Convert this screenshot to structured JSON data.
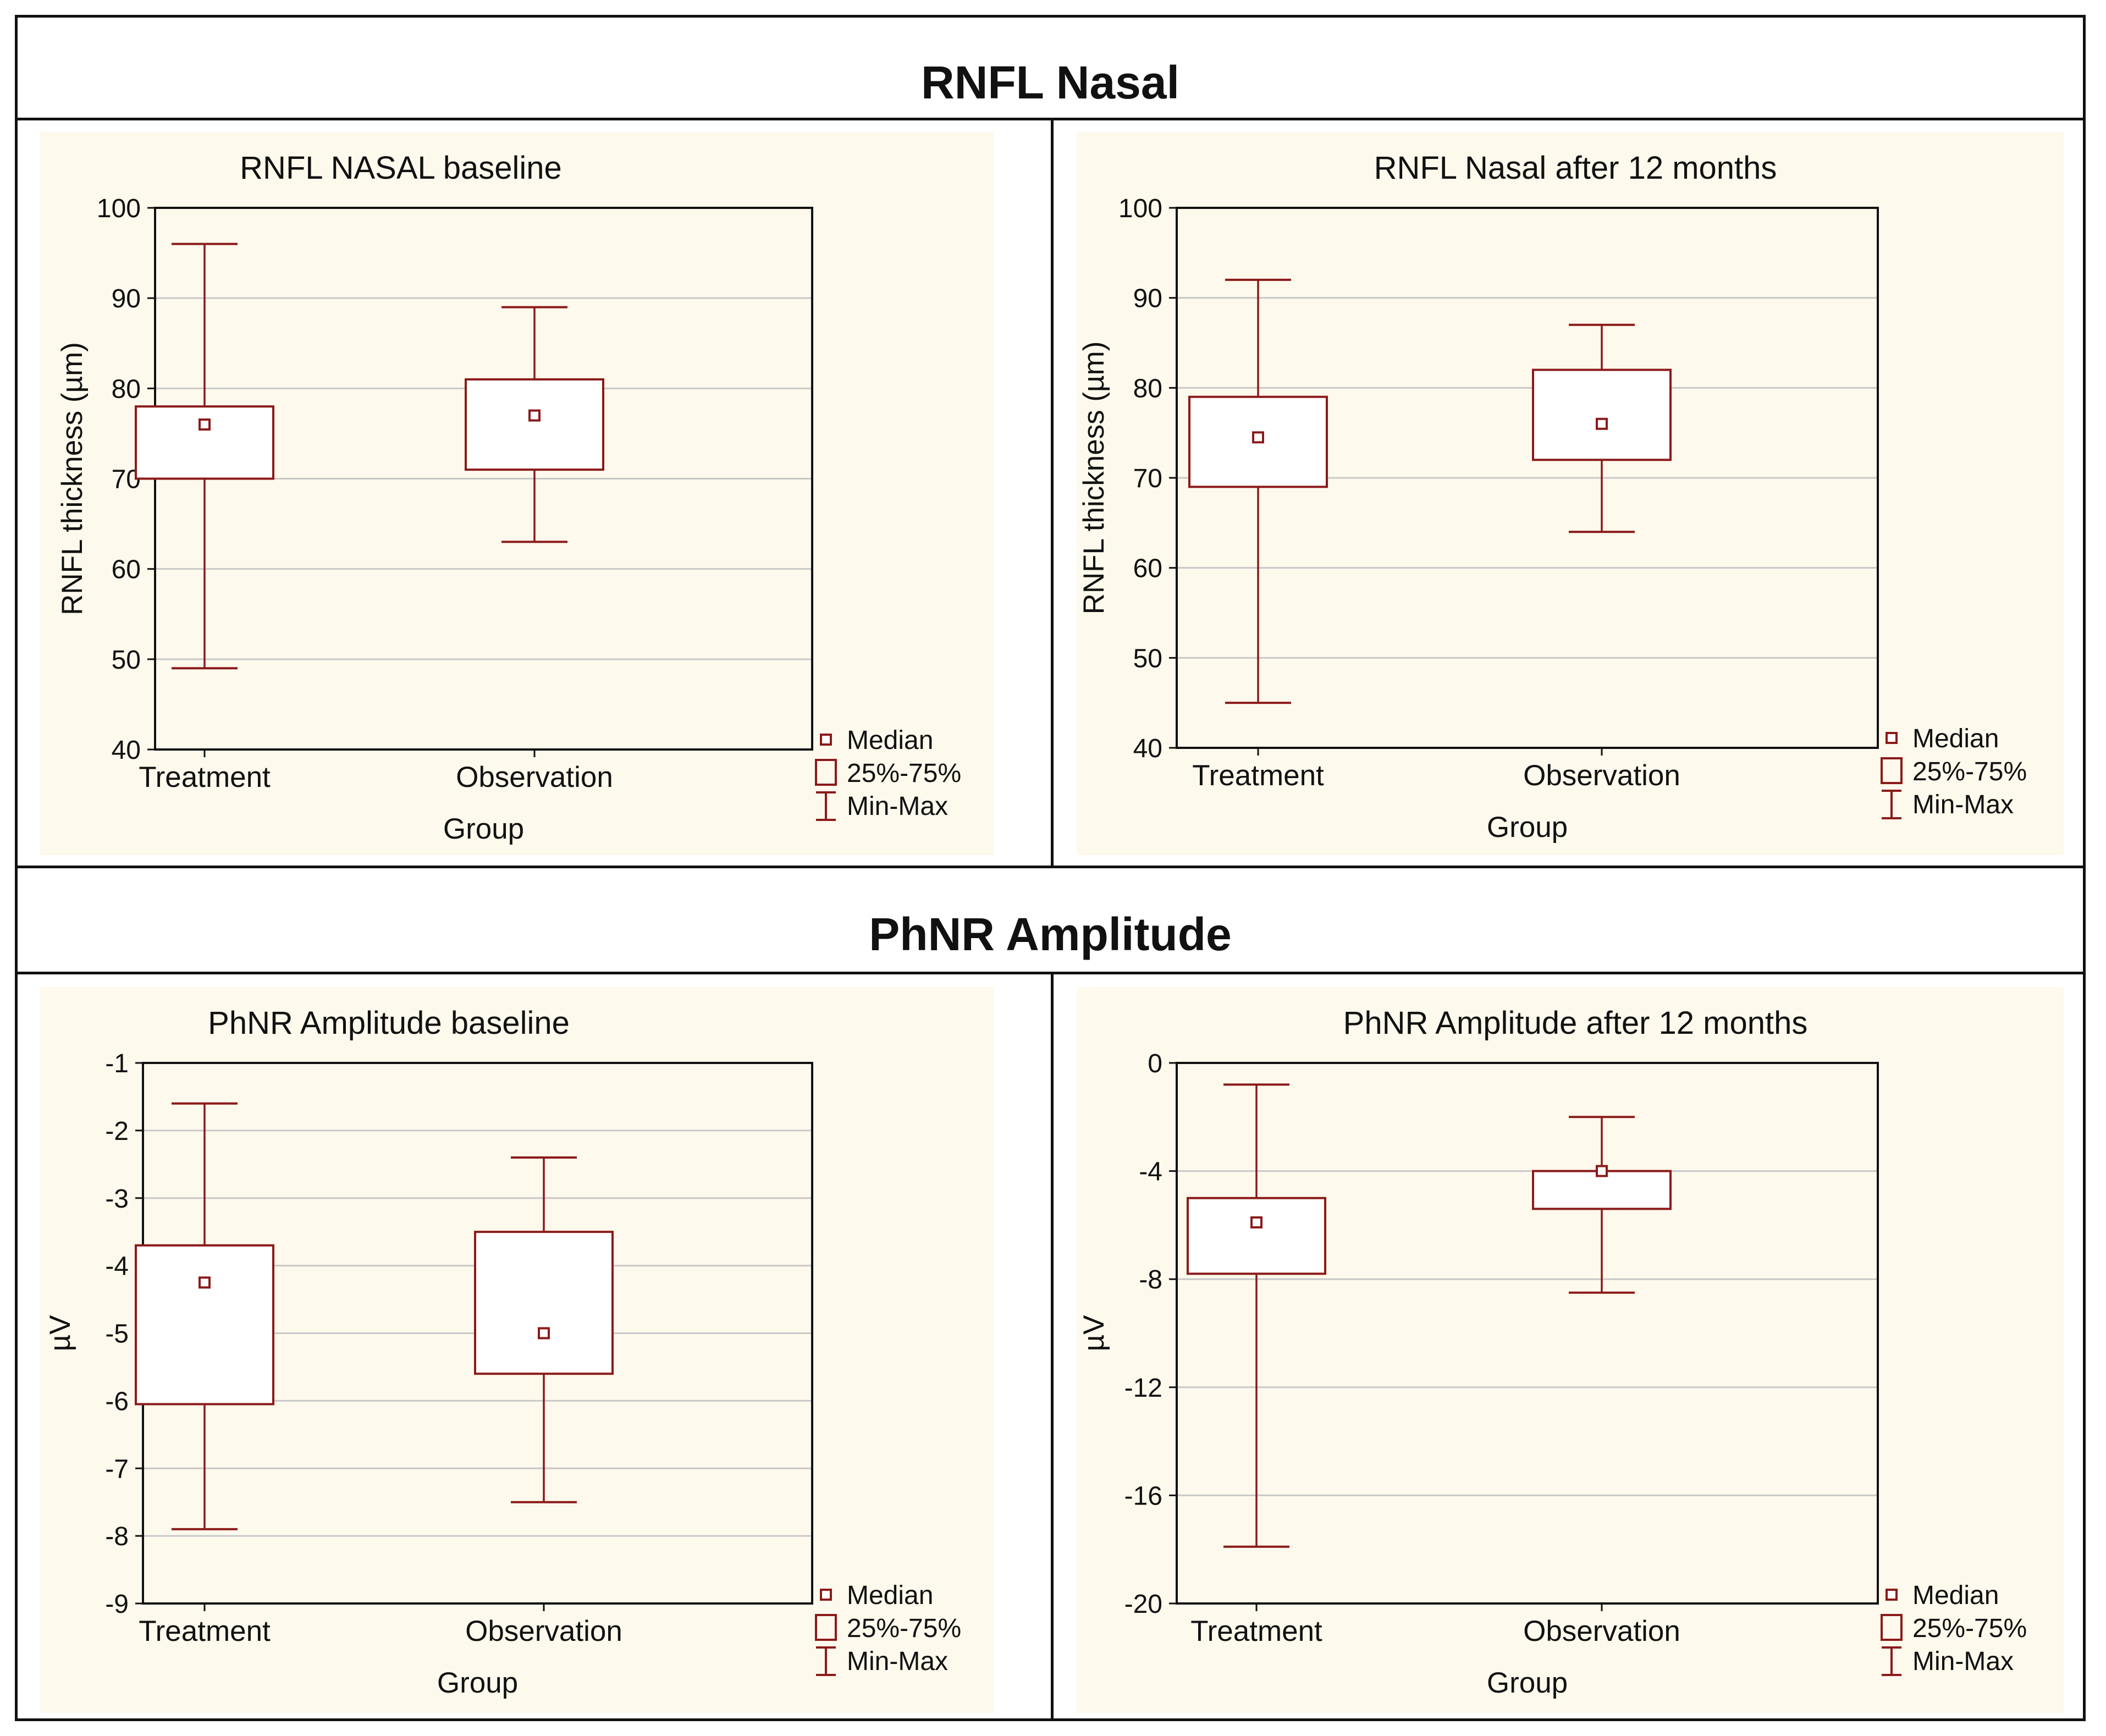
{
  "sections": {
    "top_title": "RNFL Nasal",
    "bottom_title": "PhNR Amplitude"
  },
  "legend": {
    "median": "Median",
    "iqr": "25%-75%",
    "range": "Min-Max"
  },
  "colors": {
    "box": "#8b1a1a",
    "grid": "#c8c8c8",
    "panel_bg": "#fdf9ec"
  },
  "chart_data": [
    {
      "type": "boxplot",
      "title": "RNFL NASAL baseline",
      "xlabel": "Group",
      "ylabel": "RNFL thickness (µm)",
      "ylim": [
        40,
        100
      ],
      "yticks": [
        40,
        50,
        60,
        70,
        80,
        90,
        100
      ],
      "ytick_labels": [
        "40",
        "50",
        "60",
        "70",
        "80",
        "90",
        "100"
      ],
      "categories": [
        "Treatment",
        "Observation"
      ],
      "boxes": [
        {
          "median": 76,
          "q1": 70,
          "q3": 78,
          "min": 49,
          "max": 96
        },
        {
          "median": 77,
          "q1": 71,
          "q3": 81,
          "min": 63,
          "max": 89
        }
      ]
    },
    {
      "type": "boxplot",
      "title": "RNFL Nasal after 12 months",
      "xlabel": "Group",
      "ylabel": "RNFL thickness (µm)",
      "ylim": [
        40,
        100
      ],
      "yticks": [
        40,
        50,
        60,
        70,
        80,
        90,
        100
      ],
      "ytick_labels": [
        "40",
        "50",
        "60",
        "70",
        "80",
        "90",
        "100"
      ],
      "categories": [
        "Treatment",
        "Observation"
      ],
      "boxes": [
        {
          "median": 74.5,
          "q1": 69,
          "q3": 79,
          "min": 45,
          "max": 92
        },
        {
          "median": 76,
          "q1": 72,
          "q3": 82,
          "min": 64,
          "max": 87
        }
      ]
    },
    {
      "type": "boxplot",
      "title": "PhNR Amplitude baseline",
      "xlabel": "Group",
      "ylabel": "µV",
      "ylim": [
        -9,
        -1
      ],
      "yticks": [
        -9,
        -8,
        -7,
        -6,
        -5,
        -4,
        -3,
        -2,
        -1
      ],
      "ytick_labels": [
        "-9",
        "-8",
        "-7",
        "-6",
        "-5",
        "-4",
        "-3",
        "-2",
        "-1"
      ],
      "categories": [
        "Treatment",
        "Observation"
      ],
      "boxes": [
        {
          "median": -4.25,
          "q1": -6.05,
          "q3": -3.7,
          "min": -7.9,
          "max": -1.6
        },
        {
          "median": -5.0,
          "q1": -5.6,
          "q3": -3.5,
          "min": -7.5,
          "max": -2.4
        }
      ]
    },
    {
      "type": "boxplot",
      "title": "PhNR Amplitude after 12 months",
      "xlabel": "Group",
      "ylabel": "µV",
      "ylim": [
        -20,
        0
      ],
      "yticks": [
        -20,
        -16,
        -12,
        -8,
        -4,
        0
      ],
      "ytick_labels": [
        "-20",
        "-16",
        "-12",
        "-8",
        "-4",
        "0"
      ],
      "categories": [
        "Treatment",
        "Observation"
      ],
      "boxes": [
        {
          "median": -5.9,
          "q1": -7.8,
          "q3": -5.0,
          "min": -17.9,
          "max": -0.8
        },
        {
          "median": -4.0,
          "q1": -5.4,
          "q3": -4.0,
          "min": -8.5,
          "max": -2.0
        }
      ]
    }
  ]
}
